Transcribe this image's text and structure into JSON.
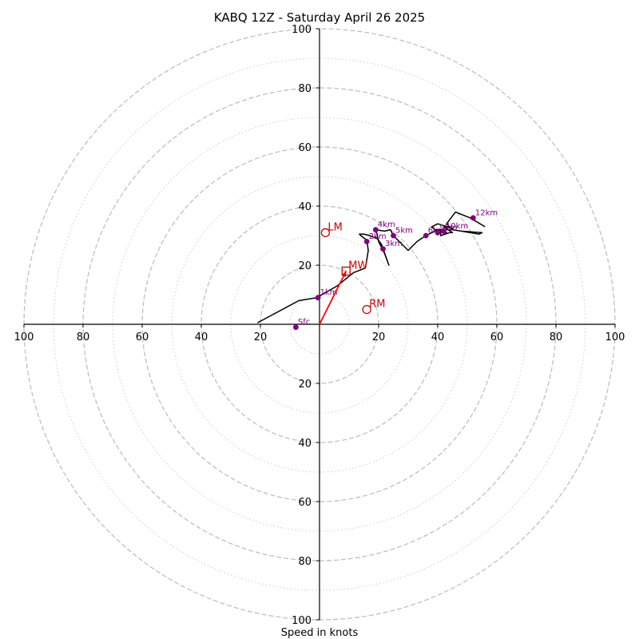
{
  "chart_data": {
    "type": "line",
    "title": "KABQ 12Z - Saturday April 26 2025",
    "xlabel": "Speed in knots",
    "ylabel": "",
    "xlim": [
      -100,
      100
    ],
    "ylim": [
      -100,
      100
    ],
    "rings_major": [
      20,
      40,
      60,
      80,
      100
    ],
    "rings_minor": [
      10,
      30,
      50,
      70,
      90
    ],
    "x_ticks": [
      {
        "value": -100,
        "label": "100"
      },
      {
        "value": -80,
        "label": "80"
      },
      {
        "value": -60,
        "label": "60"
      },
      {
        "value": -40,
        "label": "40"
      },
      {
        "value": -20,
        "label": "20"
      },
      {
        "value": 20,
        "label": "20"
      },
      {
        "value": 40,
        "label": "40"
      },
      {
        "value": 60,
        "label": "60"
      },
      {
        "value": 80,
        "label": "80"
      },
      {
        "value": 100,
        "label": "100"
      }
    ],
    "y_ticks": [
      {
        "value": 100,
        "label": "100"
      },
      {
        "value": 80,
        "label": "80"
      },
      {
        "value": 60,
        "label": "60"
      },
      {
        "value": 40,
        "label": "40"
      },
      {
        "value": 20,
        "label": "20"
      },
      {
        "value": -20,
        "label": "20"
      },
      {
        "value": -40,
        "label": "40"
      },
      {
        "value": -60,
        "label": "60"
      },
      {
        "value": -80,
        "label": "80"
      },
      {
        "value": -100,
        "label": "100"
      }
    ],
    "hodograph_line": [
      [
        -21,
        0.5
      ],
      [
        -7,
        8
      ],
      [
        -1,
        9
      ],
      [
        6,
        13
      ],
      [
        11.5,
        17.5
      ],
      [
        15.5,
        19
      ],
      [
        16.5,
        25
      ],
      [
        16,
        28.5
      ],
      [
        14,
        30
      ],
      [
        13.5,
        30.5
      ],
      [
        15,
        30.5
      ],
      [
        17,
        30
      ],
      [
        19.5,
        29
      ],
      [
        21,
        27
      ],
      [
        21.5,
        25.5
      ],
      [
        23.5,
        20
      ],
      [
        22,
        24
      ],
      [
        20,
        28
      ],
      [
        19.5,
        30.5
      ],
      [
        19,
        32
      ],
      [
        22,
        31.5
      ],
      [
        24,
        32
      ],
      [
        25,
        30
      ],
      [
        27,
        28
      ],
      [
        30,
        25
      ],
      [
        33,
        28
      ],
      [
        36,
        30
      ],
      [
        39,
        31.5
      ],
      [
        41,
        32
      ],
      [
        41,
        30
      ],
      [
        44,
        31
      ],
      [
        45,
        31
      ],
      [
        42,
        33
      ],
      [
        45,
        32.5
      ],
      [
        40,
        34
      ],
      [
        38,
        33
      ],
      [
        39,
        32
      ],
      [
        41,
        32
      ],
      [
        43,
        31
      ],
      [
        42,
        32
      ],
      [
        45,
        32
      ],
      [
        48,
        31.5
      ],
      [
        55,
        31
      ],
      [
        54,
        30.5
      ],
      [
        48,
        31.5
      ],
      [
        45,
        32
      ],
      [
        43,
        34
      ],
      [
        46,
        38
      ],
      [
        51,
        36
      ],
      [
        56,
        33
      ]
    ],
    "height_markers": [
      {
        "label": "Sfc",
        "x": -8,
        "y": -1
      },
      {
        "label": "1km",
        "x": -0.5,
        "y": 9
      },
      {
        "label": "2km",
        "x": 16,
        "y": 28
      },
      {
        "label": "3km",
        "x": 21.5,
        "y": 25.5
      },
      {
        "label": "4km",
        "x": 19,
        "y": 32
      },
      {
        "label": "5km",
        "x": 25,
        "y": 30
      },
      {
        "label": "6km",
        "x": 36,
        "y": 30
      },
      {
        "label": "9km",
        "x": 40,
        "y": 31
      },
      {
        "label": "10km",
        "x": 42,
        "y": 31.5
      },
      {
        "label": "12km",
        "x": 52,
        "y": 36
      }
    ],
    "storm_points": [
      {
        "label": "LM",
        "x": 2,
        "y": 31,
        "shape": "circle"
      },
      {
        "label": "MW",
        "x": 9,
        "y": 18,
        "shape": "square"
      },
      {
        "label": "RM",
        "x": 16,
        "y": 5,
        "shape": "circle"
      }
    ],
    "storm_vector": {
      "from": [
        0,
        0
      ],
      "to": [
        9,
        18
      ]
    },
    "colors": {
      "hodograph": "#000000",
      "markers": "#800080",
      "storm": "#cc0000",
      "vector": "#ff0000",
      "ring_major": "#bbbbbb",
      "ring_minor": "#cccccc"
    }
  }
}
